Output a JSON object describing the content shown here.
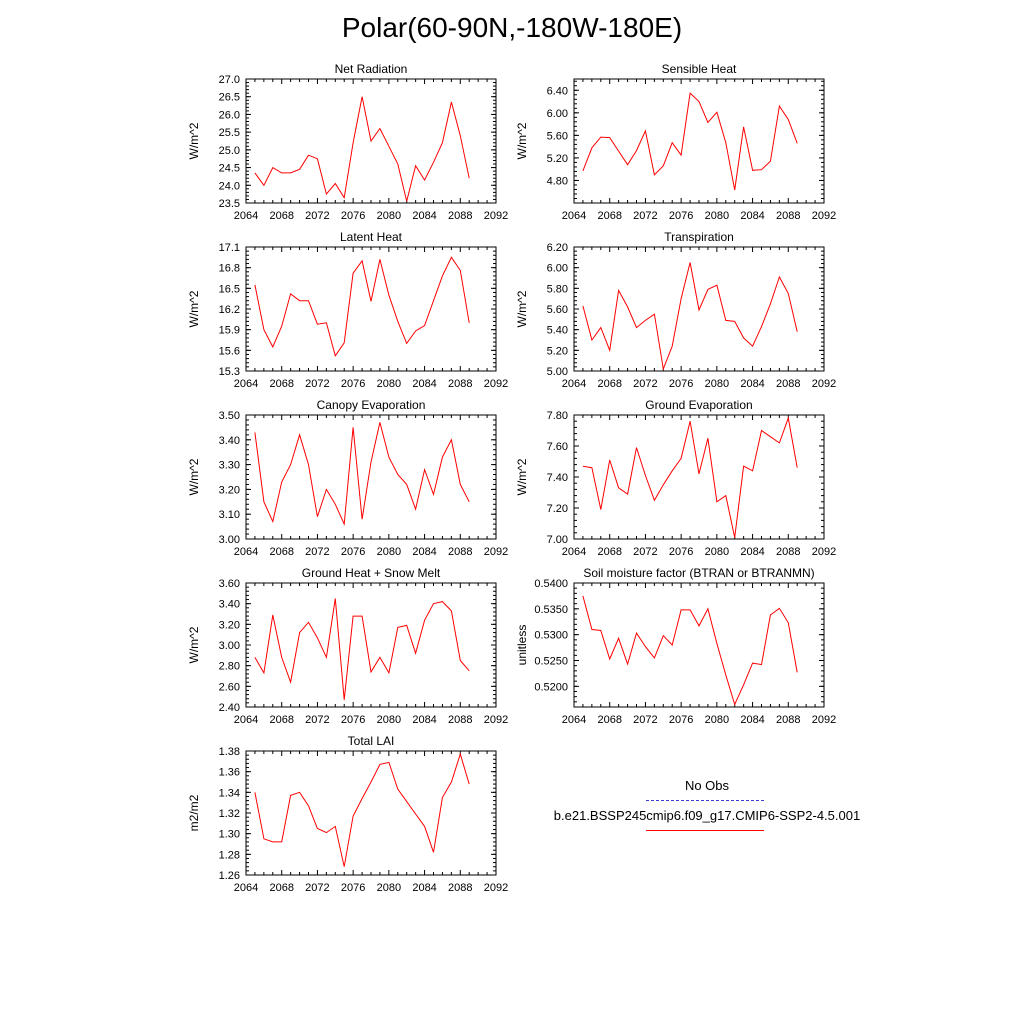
{
  "title": "Polar(60-90N,-180W-180E)",
  "legend": {
    "obs_label": "No Obs",
    "case_label": "b.e21.BSSP245cmip6.f09_g17.CMIP6-SSP2-4.5.001",
    "obs_color": "#3b3bd6",
    "case_color": "#ff0000"
  },
  "chart_data": [
    {
      "type": "line",
      "title": "Net Radiation",
      "ylabel": "W/m^2",
      "xlim": [
        2064,
        2092
      ],
      "xticks": [
        2064,
        2068,
        2072,
        2076,
        2080,
        2084,
        2088,
        2092
      ],
      "xtick_labels": [
        "2064",
        "2068",
        "2072",
        "2076",
        "2080",
        "2084",
        "2088",
        "2092"
      ],
      "ylim": [
        23.5,
        27.0
      ],
      "yticks": [
        23.5,
        24.0,
        24.5,
        25.0,
        25.5,
        26.0,
        26.5,
        27.0
      ],
      "ytick_labels": [
        "23.5",
        "24.0",
        "24.5",
        "25.0",
        "25.5",
        "26.0",
        "26.5",
        "27.0"
      ],
      "series": [
        {
          "color": "#ff0000",
          "x": [
            2065,
            2066,
            2067,
            2068,
            2069,
            2070,
            2071,
            2072,
            2073,
            2074,
            2075,
            2076,
            2077,
            2078,
            2079,
            2080,
            2081,
            2082,
            2083,
            2084,
            2085,
            2086,
            2087,
            2088,
            2089
          ],
          "y": [
            24.35,
            24.0,
            24.5,
            24.35,
            24.35,
            24.45,
            24.85,
            24.75,
            23.75,
            24.05,
            23.65,
            25.2,
            26.5,
            25.25,
            25.6,
            25.1,
            24.6,
            23.55,
            24.55,
            24.15,
            24.65,
            25.2,
            26.35,
            25.4,
            24.2
          ]
        }
      ]
    },
    {
      "type": "line",
      "title": "Sensible Heat",
      "ylabel": "W/m^2",
      "xlim": [
        2064,
        2092
      ],
      "xticks": [
        2064,
        2068,
        2072,
        2076,
        2080,
        2084,
        2088,
        2092
      ],
      "xtick_labels": [
        "2064",
        "2068",
        "2072",
        "2076",
        "2080",
        "2084",
        "2088",
        "2092"
      ],
      "ylim": [
        4.4,
        6.6
      ],
      "yticks": [
        4.8,
        5.2,
        5.6,
        6.0,
        6.4
      ],
      "ytick_labels": [
        "4.80",
        "5.20",
        "5.60",
        "6.00",
        "6.40"
      ],
      "series": [
        {
          "color": "#ff0000",
          "x": [
            2065,
            2066,
            2067,
            2068,
            2069,
            2070,
            2071,
            2072,
            2073,
            2074,
            2075,
            2076,
            2077,
            2078,
            2079,
            2080,
            2081,
            2082,
            2083,
            2084,
            2085,
            2086,
            2087,
            2088,
            2089
          ],
          "y": [
            4.97,
            5.38,
            5.57,
            5.56,
            5.32,
            5.08,
            5.33,
            5.68,
            4.9,
            5.06,
            5.47,
            5.25,
            6.35,
            6.2,
            5.83,
            6.01,
            5.47,
            4.63,
            5.75,
            4.98,
            4.99,
            5.14,
            6.12,
            5.88,
            5.46
          ]
        }
      ]
    },
    {
      "type": "line",
      "title": "Latent Heat",
      "ylabel": "W/m^2",
      "xlim": [
        2064,
        2092
      ],
      "xticks": [
        2064,
        2068,
        2072,
        2076,
        2080,
        2084,
        2088,
        2092
      ],
      "xtick_labels": [
        "2064",
        "2068",
        "2072",
        "2076",
        "2080",
        "2084",
        "2088",
        "2092"
      ],
      "ylim": [
        15.3,
        17.1
      ],
      "yticks": [
        15.3,
        15.6,
        15.9,
        16.2,
        16.5,
        16.8,
        17.1
      ],
      "ytick_labels": [
        "15.3",
        "15.6",
        "15.9",
        "16.2",
        "16.5",
        "16.8",
        "17.1"
      ],
      "series": [
        {
          "color": "#ff0000",
          "x": [
            2065,
            2066,
            2067,
            2068,
            2069,
            2070,
            2071,
            2072,
            2073,
            2074,
            2075,
            2076,
            2077,
            2078,
            2079,
            2080,
            2081,
            2082,
            2083,
            2084,
            2085,
            2086,
            2087,
            2088,
            2089
          ],
          "y": [
            16.55,
            15.9,
            15.65,
            15.95,
            16.42,
            16.32,
            16.32,
            15.98,
            16.0,
            15.52,
            15.71,
            16.72,
            16.9,
            16.31,
            16.92,
            16.4,
            16.02,
            15.7,
            15.88,
            15.96,
            16.32,
            16.68,
            16.95,
            16.76,
            16.0
          ]
        }
      ]
    },
    {
      "type": "line",
      "title": "Transpiration",
      "ylabel": "W/m^2",
      "xlim": [
        2064,
        2092
      ],
      "xticks": [
        2064,
        2068,
        2072,
        2076,
        2080,
        2084,
        2088,
        2092
      ],
      "xtick_labels": [
        "2064",
        "2068",
        "2072",
        "2076",
        "2080",
        "2084",
        "2088",
        "2092"
      ],
      "ylim": [
        5.0,
        6.2
      ],
      "yticks": [
        5.0,
        5.2,
        5.4,
        5.6,
        5.8,
        6.0,
        6.2
      ],
      "ytick_labels": [
        "5.00",
        "5.20",
        "5.40",
        "5.60",
        "5.80",
        "6.00",
        "6.20"
      ],
      "series": [
        {
          "color": "#ff0000",
          "x": [
            2065,
            2066,
            2067,
            2068,
            2069,
            2070,
            2071,
            2072,
            2073,
            2074,
            2075,
            2076,
            2077,
            2078,
            2079,
            2080,
            2081,
            2082,
            2083,
            2084,
            2085,
            2086,
            2087,
            2088,
            2089
          ],
          "y": [
            5.63,
            5.3,
            5.42,
            5.2,
            5.78,
            5.62,
            5.42,
            5.49,
            5.55,
            5.02,
            5.24,
            5.7,
            6.05,
            5.59,
            5.79,
            5.83,
            5.49,
            5.48,
            5.32,
            5.24,
            5.43,
            5.65,
            5.91,
            5.75,
            5.38
          ]
        }
      ]
    },
    {
      "type": "line",
      "title": "Canopy Evaporation",
      "ylabel": "W/m^2",
      "xlim": [
        2064,
        2092
      ],
      "xticks": [
        2064,
        2068,
        2072,
        2076,
        2080,
        2084,
        2088,
        2092
      ],
      "xtick_labels": [
        "2064",
        "2068",
        "2072",
        "2076",
        "2080",
        "2084",
        "2088",
        "2092"
      ],
      "ylim": [
        3.0,
        3.5
      ],
      "yticks": [
        3.0,
        3.1,
        3.2,
        3.3,
        3.4,
        3.5
      ],
      "ytick_labels": [
        "3.00",
        "3.10",
        "3.20",
        "3.30",
        "3.40",
        "3.50"
      ],
      "series": [
        {
          "color": "#ff0000",
          "x": [
            2065,
            2066,
            2067,
            2068,
            2069,
            2070,
            2071,
            2072,
            2073,
            2074,
            2075,
            2076,
            2077,
            2078,
            2079,
            2080,
            2081,
            2082,
            2083,
            2084,
            2085,
            2086,
            2087,
            2088,
            2089
          ],
          "y": [
            3.43,
            3.15,
            3.07,
            3.23,
            3.3,
            3.42,
            3.3,
            3.09,
            3.2,
            3.14,
            3.06,
            3.45,
            3.08,
            3.31,
            3.47,
            3.33,
            3.26,
            3.22,
            3.12,
            3.28,
            3.18,
            3.33,
            3.4,
            3.22,
            3.15
          ]
        }
      ]
    },
    {
      "type": "line",
      "title": "Ground Evaporation",
      "ylabel": "W/m^2",
      "xlim": [
        2064,
        2092
      ],
      "xticks": [
        2064,
        2068,
        2072,
        2076,
        2080,
        2084,
        2088,
        2092
      ],
      "xtick_labels": [
        "2064",
        "2068",
        "2072",
        "2076",
        "2080",
        "2084",
        "2088",
        "2092"
      ],
      "ylim": [
        7.0,
        7.8
      ],
      "yticks": [
        7.0,
        7.2,
        7.4,
        7.6,
        7.8
      ],
      "ytick_labels": [
        "7.00",
        "7.20",
        "7.40",
        "7.60",
        "7.80"
      ],
      "series": [
        {
          "color": "#ff0000",
          "x": [
            2065,
            2066,
            2067,
            2068,
            2069,
            2070,
            2071,
            2072,
            2073,
            2074,
            2075,
            2076,
            2077,
            2078,
            2079,
            2080,
            2081,
            2082,
            2083,
            2084,
            2085,
            2086,
            2087,
            2088,
            2089
          ],
          "y": [
            7.47,
            7.46,
            7.19,
            7.51,
            7.33,
            7.29,
            7.59,
            7.41,
            7.25,
            7.35,
            7.44,
            7.52,
            7.76,
            7.42,
            7.65,
            7.24,
            7.28,
            7.01,
            7.47,
            7.44,
            7.7,
            7.66,
            7.62,
            7.78,
            7.46
          ]
        }
      ]
    },
    {
      "type": "line",
      "title": "Ground Heat + Snow Melt",
      "ylabel": "W/m^2",
      "xlim": [
        2064,
        2092
      ],
      "xticks": [
        2064,
        2068,
        2072,
        2076,
        2080,
        2084,
        2088,
        2092
      ],
      "xtick_labels": [
        "2064",
        "2068",
        "2072",
        "2076",
        "2080",
        "2084",
        "2088",
        "2092"
      ],
      "ylim": [
        2.4,
        3.6
      ],
      "yticks": [
        2.4,
        2.6,
        2.8,
        3.0,
        3.2,
        3.4,
        3.6
      ],
      "ytick_labels": [
        "2.40",
        "2.60",
        "2.80",
        "3.00",
        "3.20",
        "3.40",
        "3.60"
      ],
      "series": [
        {
          "color": "#ff0000",
          "x": [
            2065,
            2066,
            2067,
            2068,
            2069,
            2070,
            2071,
            2072,
            2073,
            2074,
            2075,
            2076,
            2077,
            2078,
            2079,
            2080,
            2081,
            2082,
            2083,
            2084,
            2085,
            2086,
            2087,
            2088,
            2089
          ],
          "y": [
            2.88,
            2.73,
            3.29,
            2.88,
            2.64,
            3.12,
            3.22,
            3.07,
            2.88,
            3.45,
            2.47,
            3.28,
            3.28,
            2.74,
            2.88,
            2.73,
            3.17,
            3.19,
            2.92,
            3.24,
            3.4,
            3.42,
            3.33,
            2.85,
            2.75
          ]
        }
      ]
    },
    {
      "type": "line",
      "title": "Soil moisture factor (BTRAN or BTRANMN)",
      "ylabel": "unitless",
      "xlim": [
        2064,
        2092
      ],
      "xticks": [
        2064,
        2068,
        2072,
        2076,
        2080,
        2084,
        2088,
        2092
      ],
      "xtick_labels": [
        "2064",
        "2068",
        "2072",
        "2076",
        "2080",
        "2084",
        "2088",
        "2092"
      ],
      "ylim": [
        0.516,
        0.54
      ],
      "yticks": [
        0.52,
        0.525,
        0.53,
        0.535,
        0.54
      ],
      "ytick_labels": [
        "0.5200",
        "0.5250",
        "0.5300",
        "0.5350",
        "0.5400"
      ],
      "series": [
        {
          "color": "#ff0000",
          "x": [
            2065,
            2066,
            2067,
            2068,
            2069,
            2070,
            2071,
            2072,
            2073,
            2074,
            2075,
            2076,
            2077,
            2078,
            2079,
            2080,
            2081,
            2082,
            2083,
            2084,
            2085,
            2086,
            2087,
            2088,
            2089
          ],
          "y": [
            0.5375,
            0.531,
            0.5308,
            0.5253,
            0.5293,
            0.5243,
            0.5303,
            0.5277,
            0.5255,
            0.5298,
            0.528,
            0.5348,
            0.5348,
            0.5317,
            0.535,
            0.5283,
            0.5222,
            0.5165,
            0.5203,
            0.5245,
            0.5242,
            0.5338,
            0.5351,
            0.5323,
            0.5227
          ]
        }
      ]
    },
    {
      "type": "line",
      "title": "Total LAI",
      "ylabel": "m2/m2",
      "xlim": [
        2064,
        2092
      ],
      "xticks": [
        2064,
        2068,
        2072,
        2076,
        2080,
        2084,
        2088,
        2092
      ],
      "xtick_labels": [
        "2064",
        "2068",
        "2072",
        "2076",
        "2080",
        "2084",
        "2088",
        "2092"
      ],
      "ylim": [
        1.26,
        1.38
      ],
      "yticks": [
        1.26,
        1.28,
        1.3,
        1.32,
        1.34,
        1.36,
        1.38
      ],
      "ytick_labels": [
        "1.26",
        "1.28",
        "1.30",
        "1.32",
        "1.34",
        "1.36",
        "1.38"
      ],
      "series": [
        {
          "color": "#ff0000",
          "x": [
            2065,
            2066,
            2067,
            2068,
            2069,
            2070,
            2071,
            2072,
            2073,
            2074,
            2075,
            2076,
            2077,
            2078,
            2079,
            2080,
            2081,
            2082,
            2083,
            2084,
            2085,
            2086,
            2087,
            2088,
            2089
          ],
          "y": [
            1.34,
            1.295,
            1.292,
            1.292,
            1.337,
            1.34,
            1.327,
            1.305,
            1.301,
            1.307,
            1.268,
            1.317,
            1.334,
            1.35,
            1.367,
            1.369,
            1.343,
            1.331,
            1.319,
            1.307,
            1.282,
            1.335,
            1.35,
            1.377,
            1.348
          ]
        }
      ]
    }
  ]
}
